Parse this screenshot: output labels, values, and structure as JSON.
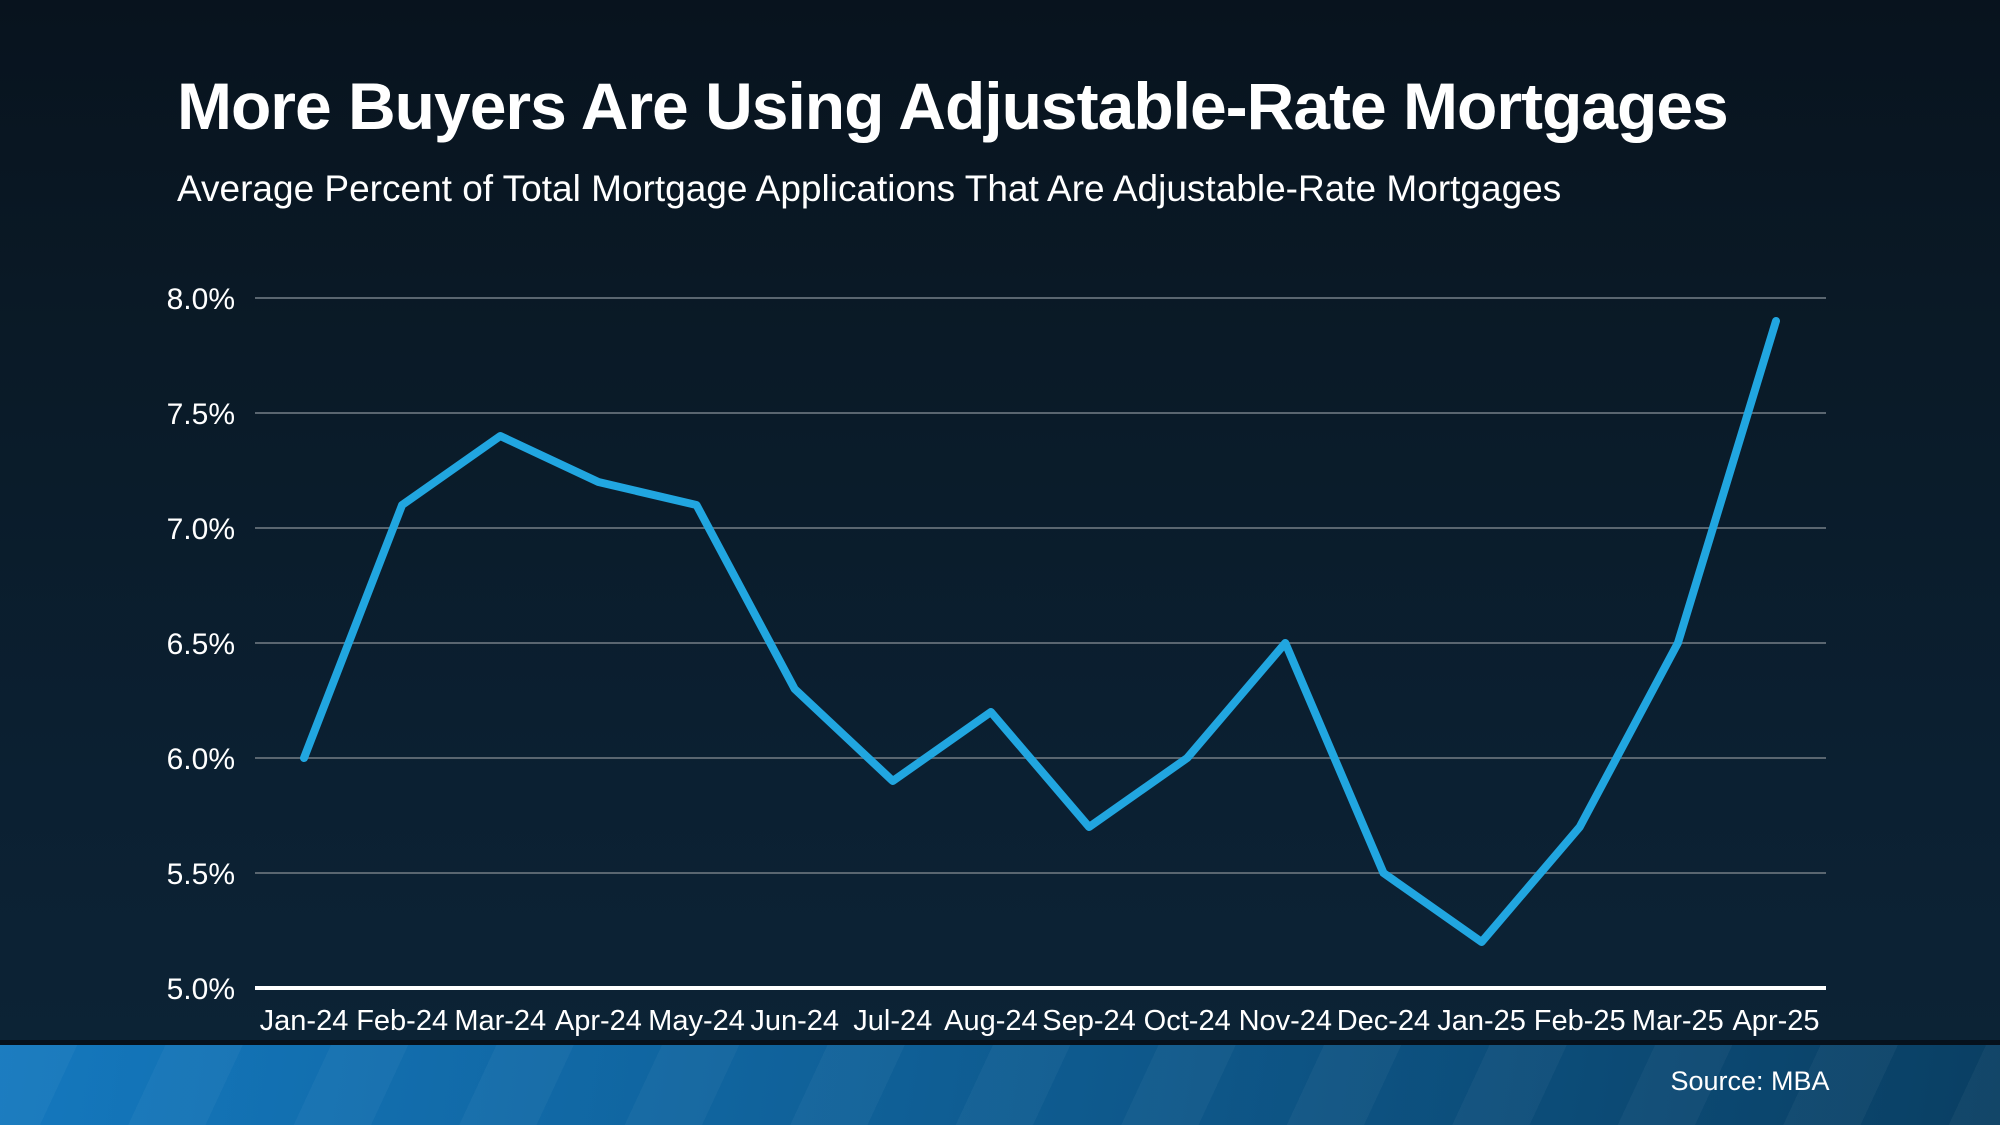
{
  "header": {
    "title": "More Buyers Are Using Adjustable-Rate Mortgages",
    "subtitle": "Average Percent of Total Mortgage Applications That Are Adjustable-Rate Mortgages"
  },
  "footer": {
    "source": "Source: MBA"
  },
  "colors": {
    "background_top": "#08131e",
    "background_bottom": "#0d2436",
    "line": "#21a6e0",
    "gridline": "#5a6670",
    "axis": "#ffffff",
    "text": "#ffffff",
    "footer_bar_left": "#1478be",
    "footer_bar_right": "#0a3f63"
  },
  "chart_data": {
    "type": "line",
    "title": "More Buyers Are Using Adjustable-Rate Mortgages",
    "subtitle": "Average Percent of Total Mortgage Applications That Are Adjustable-Rate Mortgages",
    "categories": [
      "Jan-24",
      "Feb-24",
      "Mar-24",
      "Apr-24",
      "May-24",
      "Jun-24",
      "Jul-24",
      "Aug-24",
      "Sep-24",
      "Oct-24",
      "Nov-24",
      "Dec-24",
      "Jan-25",
      "Feb-25",
      "Mar-25",
      "Apr-25"
    ],
    "values": [
      6.0,
      7.1,
      7.4,
      7.2,
      7.1,
      6.3,
      5.9,
      6.2,
      5.7,
      6.0,
      6.5,
      5.5,
      5.2,
      5.7,
      6.5,
      7.9
    ],
    "ylim": [
      5.0,
      8.0
    ],
    "ytick_values": [
      8.0,
      7.5,
      7.0,
      6.5,
      6.0,
      5.5,
      5.0
    ],
    "ytick_labels": [
      "8.0%",
      "7.5%",
      "7.0%",
      "6.5%",
      "6.0%",
      "5.5%",
      "5.0%"
    ],
    "xlabel": "",
    "ylabel": "",
    "grid": "horizontal",
    "legend": "none"
  }
}
